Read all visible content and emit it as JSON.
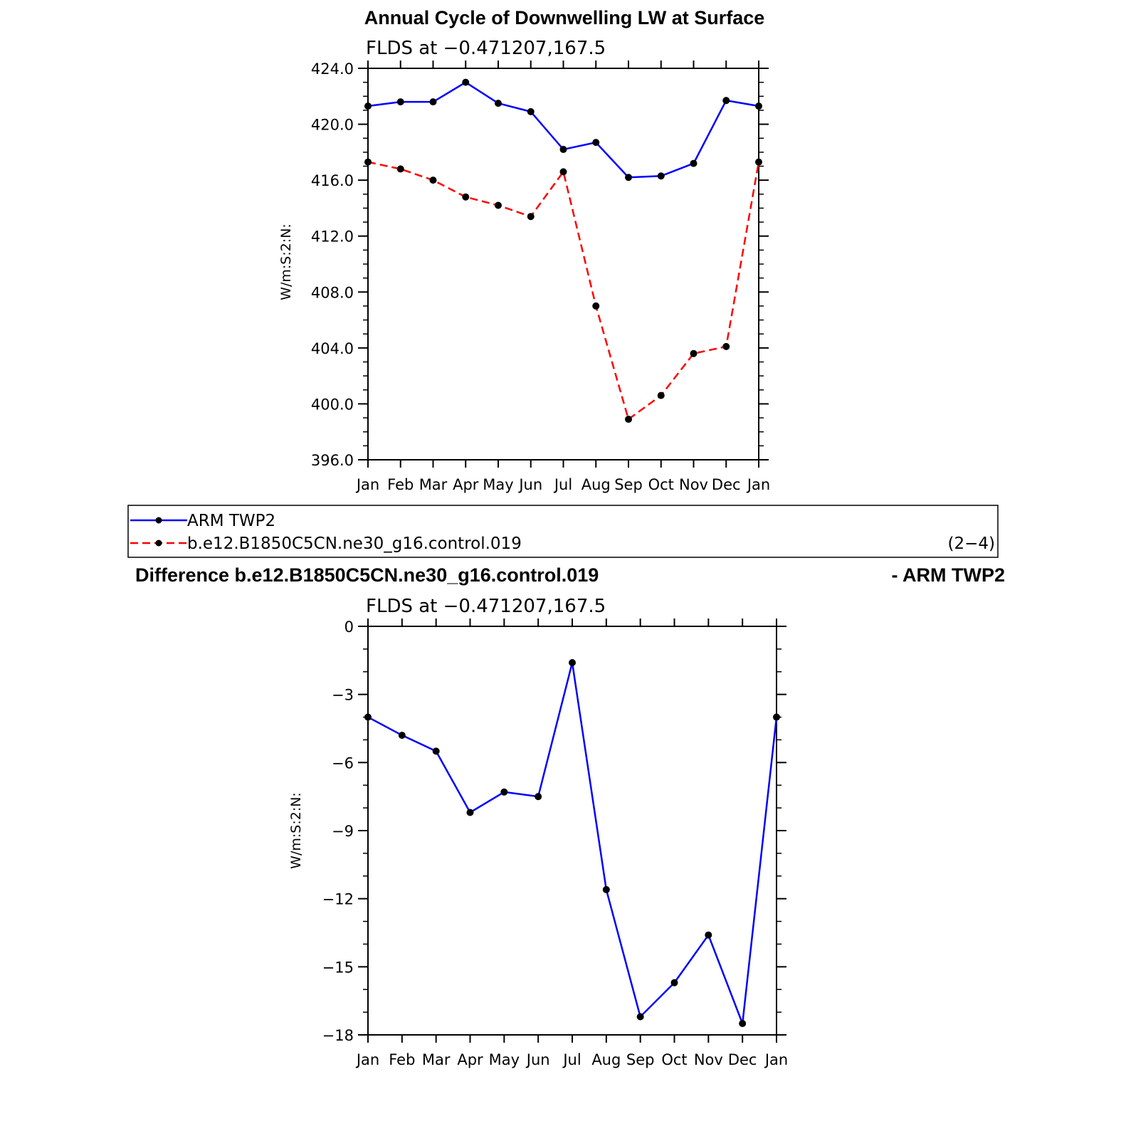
{
  "chart_data": [
    {
      "type": "line",
      "title": "Annual Cycle of Downwelling LW at Surface",
      "subtitle": "FLDS at −0.471207,167.5",
      "ylabel": "W/m:S:2:N:",
      "xlabel": "",
      "categories": [
        "Jan",
        "Feb",
        "Mar",
        "Apr",
        "May",
        "Jun",
        "Jul",
        "Aug",
        "Sep",
        "Oct",
        "Nov",
        "Dec",
        "Jan"
      ],
      "ylim": [
        396,
        424
      ],
      "yticks": [
        396,
        400,
        404,
        408,
        412,
        416,
        420,
        424
      ],
      "ytick_labels": [
        "396.0",
        "400.0",
        "404.0",
        "408.0",
        "412.0",
        "416.0",
        "420.0",
        "424.0"
      ],
      "grid": false,
      "legend": "below",
      "series": [
        {
          "name": "ARM TWP2",
          "color": "#0000ff",
          "dash": "solid",
          "values": [
            421.3,
            421.6,
            421.6,
            423.0,
            421.5,
            420.9,
            418.2,
            418.7,
            416.2,
            416.3,
            417.2,
            421.7,
            421.3
          ]
        },
        {
          "name": "b.e12.B1850C5CN.ne30_g16.control.019",
          "color": "#ff0000",
          "dash": "dashed",
          "values": [
            417.3,
            416.8,
            416.0,
            414.8,
            414.2,
            413.4,
            416.6,
            407.0,
            398.9,
            400.6,
            403.6,
            404.1,
            417.3
          ]
        }
      ]
    },
    {
      "type": "line",
      "title": "Difference b.e12.B1850C5CN.ne30_g16.control.019",
      "title_right": "- ARM TWP2",
      "subtitle": "FLDS at −0.471207,167.5",
      "ylabel": "W/m:S:2:N:",
      "xlabel": "",
      "categories": [
        "Jan",
        "Feb",
        "Mar",
        "Apr",
        "May",
        "Jun",
        "Jul",
        "Aug",
        "Sep",
        "Oct",
        "Nov",
        "Dec",
        "Jan"
      ],
      "ylim": [
        -18,
        0
      ],
      "yticks": [
        -18,
        -15,
        -12,
        -9,
        -6,
        -3,
        0
      ],
      "ytick_labels": [
        "−18",
        "−15",
        "−12",
        "−9",
        "−6",
        "−3",
        "0"
      ],
      "grid": false,
      "series": [
        {
          "color": "#0000ff",
          "dash": "solid",
          "values": [
            -4.0,
            -4.8,
            -5.5,
            -8.2,
            -7.3,
            -7.5,
            -1.6,
            -11.6,
            -17.2,
            -15.7,
            -13.6,
            -17.5,
            -4.0
          ]
        }
      ]
    }
  ],
  "legend": {
    "items": [
      {
        "label": "ARM TWP2"
      },
      {
        "label": "b.e12.B1850C5CN.ne30_g16.control.019"
      }
    ],
    "tag": "(2−4)"
  }
}
